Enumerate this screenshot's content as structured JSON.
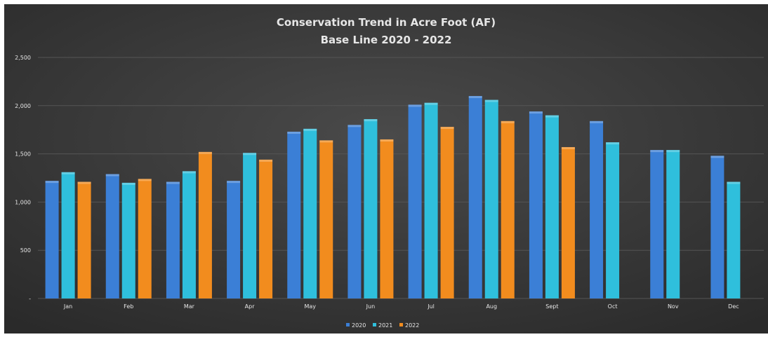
{
  "chart_data": {
    "type": "bar",
    "title": "Conservation Trend in Acre Foot (AF)",
    "subtitle": "Base Line 2020 - 2022",
    "categories": [
      "Jan",
      "Feb",
      "Mar",
      "Apr",
      "May",
      "Jun",
      "Jul",
      "Aug",
      "Sept",
      "Oct",
      "Nov",
      "Dec"
    ],
    "series": [
      {
        "name": "2020",
        "color": "#3b7fd6",
        "values": [
          1220,
          1290,
          1210,
          1220,
          1730,
          1800,
          2010,
          2100,
          1940,
          1840,
          1540,
          1480
        ]
      },
      {
        "name": "2021",
        "color": "#2fbfdc",
        "values": [
          1310,
          1200,
          1320,
          1510,
          1760,
          1860,
          2030,
          2060,
          1900,
          1620,
          1540,
          1210
        ]
      },
      {
        "name": "2022",
        "color": "#f28c1e",
        "values": [
          1210,
          1240,
          1520,
          1440,
          1640,
          1650,
          1780,
          1840,
          1570,
          null,
          null,
          null
        ]
      }
    ],
    "y_ticks": [
      0,
      500,
      1000,
      1500,
      2000,
      2500
    ],
    "y_tick_labels": [
      "-",
      "500",
      "1,000",
      "1,500",
      "2,000",
      "2,500"
    ],
    "ylim": [
      0,
      2500
    ],
    "grid": true,
    "legend_position": "bottom",
    "background": "#3a3a3a",
    "gridline_color": "#555555",
    "text_color": "#e6e6e6"
  }
}
